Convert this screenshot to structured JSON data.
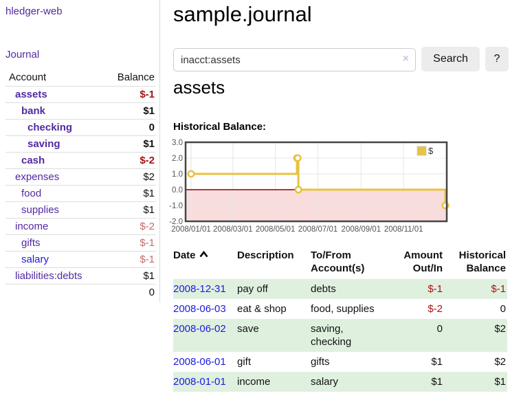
{
  "app": {
    "title": "hledger-web"
  },
  "colors": {
    "purple": "#5229a3",
    "blue": "#1a1ae0",
    "neg_strong": "#a31515",
    "neg_soft": "#c26b70",
    "shade": "#dff0df",
    "chart_line": "#e8c240"
  },
  "sidebar": {
    "journal_link": "Journal",
    "accounts_table": {
      "headers": {
        "account": "Account",
        "balance": "Balance"
      },
      "rows": [
        {
          "name": "assets",
          "depth": 1,
          "bold": true,
          "link_color": "purple",
          "balance": "$-1",
          "balance_color": "neg-strong"
        },
        {
          "name": "bank",
          "depth": 2,
          "bold": true,
          "link_color": "purple",
          "balance": "$1",
          "balance_color": "normal"
        },
        {
          "name": "checking",
          "depth": 3,
          "bold": true,
          "link_color": "purple",
          "balance": "0",
          "balance_color": "normal"
        },
        {
          "name": "saving",
          "depth": 3,
          "bold": true,
          "link_color": "purple",
          "balance": "$1",
          "balance_color": "normal"
        },
        {
          "name": "cash",
          "depth": 2,
          "bold": true,
          "link_color": "purple",
          "balance": "$-2",
          "balance_color": "neg-strong"
        },
        {
          "name": "expenses",
          "depth": 1,
          "bold": false,
          "link_color": "purple",
          "balance": "$2",
          "balance_color": "normal"
        },
        {
          "name": "food",
          "depth": 2,
          "bold": false,
          "link_color": "purple",
          "balance": "$1",
          "balance_color": "normal"
        },
        {
          "name": "supplies",
          "depth": 2,
          "bold": false,
          "link_color": "purple",
          "balance": "$1",
          "balance_color": "normal"
        },
        {
          "name": "income",
          "depth": 1,
          "bold": false,
          "link_color": "purple",
          "balance": "$-2",
          "balance_color": "neg-soft"
        },
        {
          "name": "gifts",
          "depth": 2,
          "bold": false,
          "link_color": "purple",
          "balance": "$-1",
          "balance_color": "neg-soft"
        },
        {
          "name": "salary",
          "depth": 2,
          "bold": false,
          "link_color": "blue",
          "balance": "$-1",
          "balance_color": "neg-soft"
        },
        {
          "name": "liabilities:debts",
          "depth": 1,
          "bold": false,
          "link_color": "purple",
          "balance": "$1",
          "balance_color": "normal"
        }
      ],
      "total": "0"
    }
  },
  "main": {
    "title": "sample.journal",
    "search": {
      "value": "inacct:assets",
      "clear_icon": "×",
      "button": "Search",
      "help_button": "?"
    },
    "account_heading": "assets",
    "chart_label": "Historical Balance:",
    "register": {
      "headers": {
        "date": "Date",
        "description": "Description",
        "accounts": "To/From Account(s)",
        "amount": "Amount Out/In",
        "balance": "Historical Balance"
      },
      "rows": [
        {
          "date": "2008-12-31",
          "description": "pay off",
          "accounts": "debts",
          "amount": "$-1",
          "amount_negative": true,
          "balance": "$-1",
          "balance_negative": true
        },
        {
          "date": "2008-06-03",
          "description": "eat & shop",
          "accounts": "food, supplies",
          "amount": "$-2",
          "amount_negative": true,
          "balance": "0",
          "balance_negative": false
        },
        {
          "date": "2008-06-02",
          "description": "save",
          "accounts": "saving, checking",
          "amount": "0",
          "amount_negative": false,
          "balance": "$2",
          "balance_negative": false
        },
        {
          "date": "2008-06-01",
          "description": "gift",
          "accounts": "gifts",
          "amount": "$1",
          "amount_negative": false,
          "balance": "$2",
          "balance_negative": false
        },
        {
          "date": "2008-01-01",
          "description": "income",
          "accounts": "salary",
          "amount": "$1",
          "amount_negative": false,
          "balance": "$1",
          "balance_negative": false
        }
      ]
    }
  },
  "chart_data": {
    "type": "line",
    "style": "step",
    "title": "Historical Balance",
    "series": [
      {
        "name": "$",
        "color": "#e8c240",
        "points": [
          [
            "2008-01-01",
            1
          ],
          [
            "2008-06-01",
            2
          ],
          [
            "2008-06-02",
            2
          ],
          [
            "2008-06-03",
            0
          ],
          [
            "2008-12-31",
            -1
          ]
        ]
      }
    ],
    "x_ticks": [
      "2008/01/01",
      "2008/03/01",
      "2008/05/01",
      "2008/07/01",
      "2008/09/01",
      "2008/11/01"
    ],
    "y_ticks": [
      3.0,
      2.0,
      1.0,
      0.0,
      -1.0,
      -2.0
    ],
    "ylim": [
      -2,
      3
    ],
    "grid": true,
    "legend": "$",
    "legend_position": "top-right",
    "negative_region_color": "#f9dddd",
    "zero_line_color": "#8b0000"
  }
}
